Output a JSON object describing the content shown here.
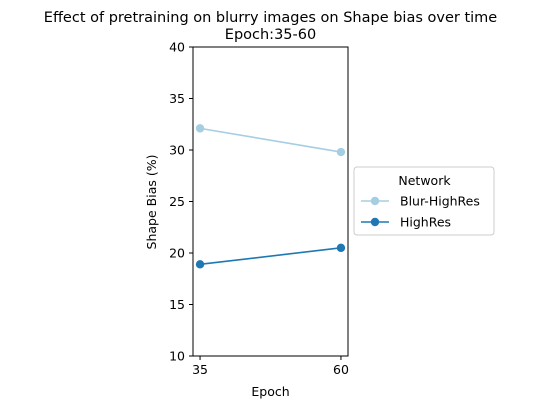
{
  "chart_data": {
    "type": "line",
    "title": "Effect of pretraining on blurry images on Shape bias over time",
    "subtitle": "Epoch:35-60",
    "xlabel": "Epoch",
    "ylabel": "Shape Bias (%)",
    "x": [
      35,
      60
    ],
    "x_ticks": [
      "35",
      "60"
    ],
    "ylim": [
      10,
      40
    ],
    "y_ticks": [
      "10",
      "15",
      "20",
      "25",
      "30",
      "35",
      "40"
    ],
    "grid": false,
    "legend": {
      "title": "Network",
      "placement": "center-right outside"
    },
    "series": [
      {
        "name": "Blur-HighRes",
        "values": [
          32.1,
          29.8
        ],
        "color": "#a6cee3"
      },
      {
        "name": "HighRes",
        "values": [
          18.9,
          20.5
        ],
        "color": "#1f78b4"
      }
    ]
  }
}
